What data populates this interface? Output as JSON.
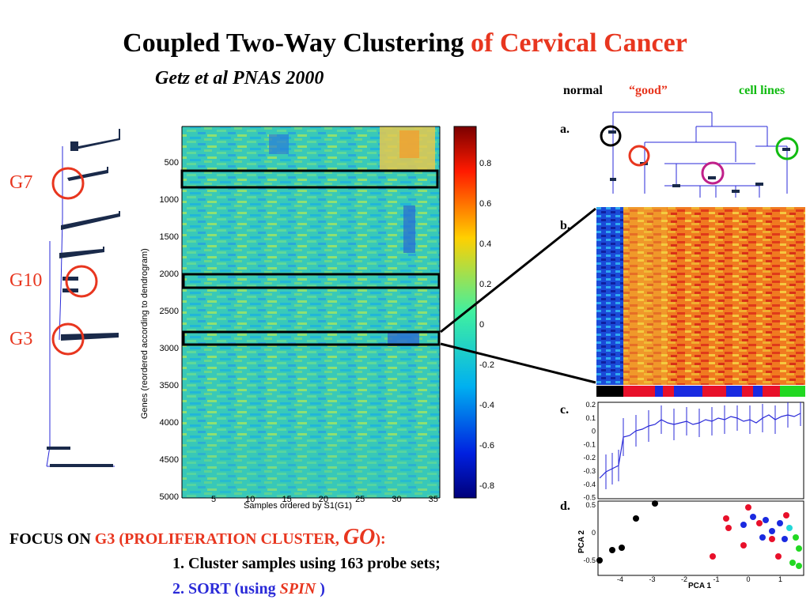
{
  "title": {
    "main": "Coupled Two-Way Clustering ",
    "highlight": "of Cervical Cancer"
  },
  "subtitle": "Getz et al   PNAS 2000",
  "gene_groups": [
    "G7",
    "G10",
    "G3"
  ],
  "heatmap": {
    "ylabel": "Genes (reordered according to dendrogram)",
    "xlabel": "Samples ordered by S1(G1)",
    "yticks": [
      "500",
      "1000",
      "1500",
      "2000",
      "2500",
      "3000",
      "3500",
      "4000",
      "4500",
      "5000"
    ],
    "xticks": [
      "5",
      "10",
      "15",
      "20",
      "25",
      "30",
      "35"
    ]
  },
  "colorbar": {
    "ticks": [
      "0.8",
      "0.6",
      "0.4",
      "0.2",
      "0",
      "-0.2",
      "-0.4",
      "-0.6",
      "-0.8"
    ]
  },
  "right_header": {
    "normal": "normal",
    "good": "“good”",
    "cell_lines": "cell lines"
  },
  "panel_labels": {
    "a": "a.",
    "b": "b.",
    "c": "c.",
    "d": "d."
  },
  "panel_c": {
    "yticks": [
      "0.2",
      "0.1",
      "0",
      "-0.1",
      "-0.2",
      "-0.3",
      "-0.4",
      "-0.5"
    ]
  },
  "panel_d": {
    "ylabel": "PCA 2",
    "xlabel": "PCA 1",
    "yticks": [
      "0.5",
      "0",
      "-0.5"
    ],
    "xticks": [
      "-4",
      "-3",
      "-2",
      "-1",
      "0",
      "1"
    ]
  },
  "focus": {
    "prefix": "FOCUS ON ",
    "g3": "G3",
    "paren_open": "  (",
    "cluster": "PROLIFERATION CLUSTER, ",
    "go": "GO",
    "paren_close": "):"
  },
  "items": {
    "one": "1. Cluster samples using 163 probe sets;",
    "two_prefix": "2. SORT (using ",
    "two_spin": "SPIN",
    "two_suffix": " )"
  },
  "colors": {
    "accent_red": "#e8361f",
    "accent_blue": "#2a2ad8",
    "cell_green": "#11bb11",
    "box_purple": "#c0208a"
  }
}
